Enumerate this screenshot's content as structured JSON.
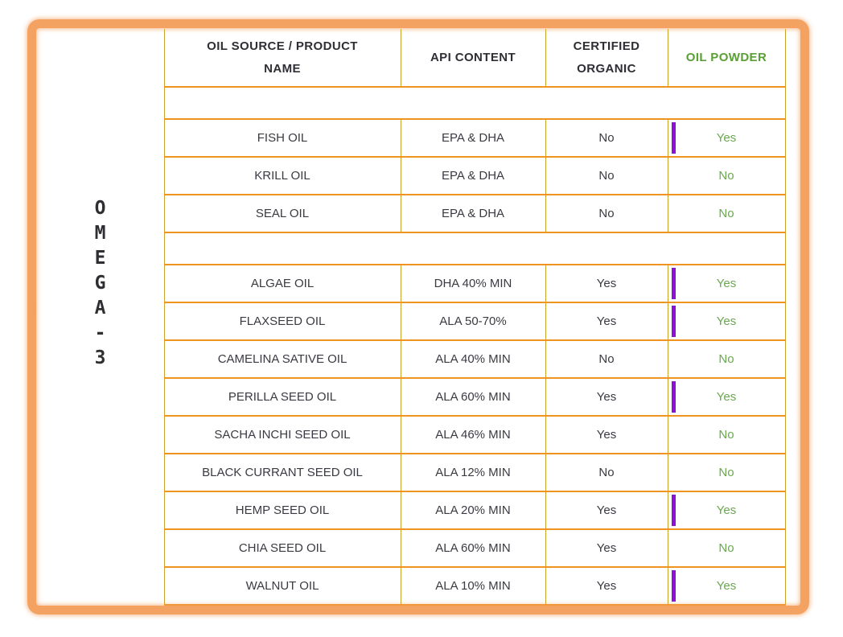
{
  "side_label": "OMEGA-3",
  "table": {
    "headers": {
      "oil_source_line1": "OIL SOURCE / PRODUCT",
      "oil_source_line2": "NAME",
      "api_content": "API CONTENT",
      "certified_line1": "CERTIFIED",
      "certified_line2": "ORGANIC",
      "oil_powder": "OIL POWDER"
    },
    "rows": [
      {
        "type": "spacer"
      },
      {
        "type": "data",
        "name": "FISH OIL",
        "api": "EPA & DHA",
        "organic": "No",
        "powder": "Yes",
        "cursor": true
      },
      {
        "type": "data",
        "name": "KRILL OIL",
        "api": "EPA & DHA",
        "organic": "No",
        "powder": "No",
        "cursor": false
      },
      {
        "type": "data",
        "name": "SEAL OIL",
        "api": "EPA & DHA",
        "organic": "No",
        "powder": "No",
        "cursor": false
      },
      {
        "type": "spacer"
      },
      {
        "type": "data",
        "name": "ALGAE OIL",
        "api": "DHA 40% MIN",
        "organic": "Yes",
        "powder": "Yes",
        "cursor": true
      },
      {
        "type": "data",
        "name": "FLAXSEED OIL",
        "api": "ALA 50-70%",
        "organic": "Yes",
        "powder": "Yes",
        "cursor": true
      },
      {
        "type": "data",
        "name": "CAMELINA SATIVE OIL",
        "api": "ALA 40% MIN",
        "organic": "No",
        "powder": "No",
        "cursor": false
      },
      {
        "type": "data",
        "name": "PERILLA SEED OIL",
        "api": "ALA 60% MIN",
        "organic": "Yes",
        "powder": "Yes",
        "cursor": true
      },
      {
        "type": "data",
        "name": "SACHA INCHI SEED OIL",
        "api": "ALA 46% MIN",
        "organic": "Yes",
        "powder": "No",
        "cursor": false
      },
      {
        "type": "data",
        "name": "BLACK CURRANT SEED OIL",
        "api": "ALA 12% MIN",
        "organic": "No",
        "powder": "No",
        "cursor": false
      },
      {
        "type": "data",
        "name": "HEMP SEED OIL",
        "api": "ALA 20% MIN",
        "organic": "Yes",
        "powder": "Yes",
        "cursor": true
      },
      {
        "type": "data",
        "name": "CHIA SEED OIL",
        "api": "ALA 60% MIN",
        "organic": "Yes",
        "powder": "No",
        "cursor": false
      },
      {
        "type": "data",
        "name": "WALNUT OIL",
        "api": "ALA 10% MIN",
        "organic": "Yes",
        "powder": "Yes",
        "cursor": true
      }
    ]
  },
  "colors": {
    "frame_orange": "#f3a262",
    "grid_vertical": "#c9a227",
    "grid_horizontal": "#ef941e",
    "text_dark": "#3a3a42",
    "header_dark": "#2e2e34",
    "powder_header_green": "#58a034",
    "powder_value_green": "#6aa84f",
    "cursor_purple": "#8d12d6"
  }
}
